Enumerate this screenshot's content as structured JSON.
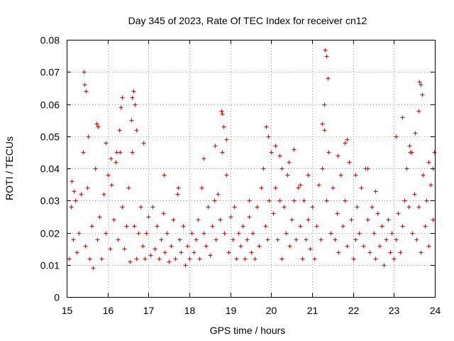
{
  "chart_data": {
    "type": "scatter",
    "title": "Day 345 of 2023, Rate Of TEC Index for receiver cn12",
    "xlabel": "GPS time / hours",
    "ylabel": "ROTI / TECUs",
    "xlim": [
      15,
      24
    ],
    "ylim": [
      0,
      0.08
    ],
    "x_ticks": [
      15,
      16,
      17,
      18,
      19,
      20,
      21,
      22,
      23,
      24
    ],
    "x_tick_labels": [
      "15",
      "16",
      "17",
      "18",
      "19",
      "20",
      "21",
      "22",
      "23",
      "24"
    ],
    "y_ticks": [
      0,
      0.01,
      0.02,
      0.03,
      0.04,
      0.05,
      0.06,
      0.07,
      0.08
    ],
    "y_tick_labels": [
      "0",
      "0.01",
      "0.02",
      "0.03",
      "0.04",
      "0.05",
      "0.06",
      "0.07",
      "0.08"
    ],
    "grid": true,
    "marker": "+",
    "series": [
      {
        "name": "ROTI",
        "color": "#ff0000",
        "x": [
          15.05,
          15.1,
          15.15,
          15.2,
          15.25,
          15.3,
          15.35,
          15.4,
          15.45,
          15.5,
          15.55,
          15.6,
          15.65,
          15.7,
          15.75,
          15.8,
          15.85,
          15.9,
          15.95,
          16.0,
          16.05,
          16.1,
          16.15,
          16.2,
          16.25,
          16.3,
          16.35,
          16.4,
          16.45,
          16.5,
          16.55,
          16.6,
          16.65,
          16.7,
          16.75,
          16.8,
          16.85,
          16.9,
          16.95,
          17.0,
          17.05,
          17.1,
          17.15,
          17.2,
          17.25,
          17.3,
          17.35,
          17.4,
          17.45,
          17.5,
          17.55,
          17.6,
          17.65,
          17.7,
          17.75,
          17.8,
          17.85,
          17.9,
          17.95,
          18.0,
          18.05,
          18.1,
          18.15,
          18.2,
          18.25,
          18.3,
          18.35,
          18.4,
          18.45,
          18.5,
          18.55,
          18.6,
          18.65,
          18.7,
          18.75,
          18.8,
          18.85,
          18.9,
          18.95,
          19.0,
          19.05,
          19.1,
          19.15,
          19.2,
          19.25,
          19.3,
          19.35,
          19.4,
          19.45,
          19.5,
          19.55,
          19.6,
          19.65,
          19.7,
          19.75,
          19.8,
          19.85,
          19.9,
          19.95,
          20.0,
          20.05,
          20.1,
          20.15,
          20.2,
          20.25,
          20.3,
          20.35,
          20.4,
          20.45,
          20.5,
          20.55,
          20.6,
          20.65,
          20.7,
          20.75,
          20.8,
          20.85,
          20.9,
          20.95,
          21.0,
          21.05,
          21.1,
          21.15,
          21.2,
          21.25,
          21.3,
          21.35,
          21.4,
          21.45,
          21.5,
          21.55,
          21.6,
          21.65,
          21.7,
          21.75,
          21.8,
          21.85,
          21.9,
          21.95,
          22.0,
          22.05,
          22.1,
          22.15,
          22.2,
          22.25,
          22.3,
          22.35,
          22.4,
          22.45,
          22.5,
          22.55,
          22.6,
          22.65,
          22.7,
          22.75,
          22.8,
          22.85,
          22.9,
          22.95,
          23.0,
          23.05,
          23.1,
          23.15,
          23.2,
          23.25,
          23.3,
          23.35,
          23.4,
          23.45,
          23.5,
          23.55,
          23.6,
          23.65,
          23.7,
          23.75,
          23.8,
          23.85,
          23.9,
          23.95,
          15.12,
          15.18,
          15.42,
          15.44,
          15.47,
          15.52,
          15.73,
          15.76,
          15.96,
          16.08,
          16.22,
          16.28,
          16.31,
          16.35,
          16.58,
          16.6,
          16.63,
          16.66,
          16.7,
          16.88,
          17.38,
          17.72,
          18.35,
          18.62,
          18.78,
          18.8,
          18.84,
          18.9,
          19.45,
          19.88,
          19.92,
          20.1,
          20.2,
          20.25,
          20.42,
          20.55,
          20.7,
          20.9,
          21.25,
          21.3,
          21.32,
          21.35,
          21.38,
          21.62,
          21.8,
          21.85,
          22.05,
          22.35,
          22.55,
          23.05,
          23.2,
          23.38,
          23.42,
          23.52,
          23.6,
          23.62,
          23.65,
          23.68,
          23.85,
          23.95,
          23.98
        ],
        "y": [
          0.012,
          0.028,
          0.018,
          0.03,
          0.014,
          0.02,
          0.032,
          0.045,
          0.016,
          0.034,
          0.012,
          0.022,
          0.009,
          0.04,
          0.018,
          0.025,
          0.012,
          0.032,
          0.02,
          0.038,
          0.015,
          0.035,
          0.024,
          0.042,
          0.018,
          0.045,
          0.028,
          0.015,
          0.022,
          0.034,
          0.011,
          0.045,
          0.022,
          0.012,
          0.02,
          0.028,
          0.016,
          0.012,
          0.02,
          0.025,
          0.013,
          0.028,
          0.015,
          0.022,
          0.012,
          0.018,
          0.026,
          0.014,
          0.02,
          0.011,
          0.016,
          0.024,
          0.012,
          0.032,
          0.018,
          0.014,
          0.022,
          0.01,
          0.016,
          0.012,
          0.02,
          0.014,
          0.018,
          0.024,
          0.012,
          0.034,
          0.02,
          0.016,
          0.028,
          0.013,
          0.022,
          0.03,
          0.018,
          0.032,
          0.024,
          0.045,
          0.02,
          0.038,
          0.014,
          0.025,
          0.018,
          0.028,
          0.012,
          0.02,
          0.016,
          0.022,
          0.012,
          0.018,
          0.025,
          0.014,
          0.02,
          0.012,
          0.028,
          0.016,
          0.034,
          0.04,
          0.022,
          0.018,
          0.03,
          0.045,
          0.026,
          0.034,
          0.018,
          0.03,
          0.012,
          0.028,
          0.02,
          0.038,
          0.016,
          0.024,
          0.03,
          0.018,
          0.034,
          0.022,
          0.012,
          0.03,
          0.018,
          0.024,
          0.015,
          0.028,
          0.012,
          0.022,
          0.035,
          0.018,
          0.04,
          0.052,
          0.03,
          0.045,
          0.02,
          0.034,
          0.018,
          0.026,
          0.014,
          0.038,
          0.022,
          0.03,
          0.016,
          0.042,
          0.024,
          0.012,
          0.018,
          0.028,
          0.02,
          0.034,
          0.016,
          0.04,
          0.024,
          0.014,
          0.028,
          0.02,
          0.012,
          0.026,
          0.016,
          0.022,
          0.01,
          0.018,
          0.024,
          0.014,
          0.02,
          0.012,
          0.018,
          0.026,
          0.014,
          0.022,
          0.03,
          0.04,
          0.028,
          0.045,
          0.02,
          0.032,
          0.018,
          0.028,
          0.014,
          0.038,
          0.022,
          0.03,
          0.016,
          0.035,
          0.024,
          0.036,
          0.033,
          0.07,
          0.066,
          0.064,
          0.05,
          0.054,
          0.053,
          0.048,
          0.043,
          0.045,
          0.052,
          0.059,
          0.062,
          0.055,
          0.062,
          0.064,
          0.06,
          0.052,
          0.048,
          0.038,
          0.034,
          0.043,
          0.047,
          0.058,
          0.057,
          0.053,
          0.049,
          0.03,
          0.053,
          0.05,
          0.047,
          0.044,
          0.04,
          0.042,
          0.046,
          0.035,
          0.038,
          0.054,
          0.06,
          0.077,
          0.075,
          0.068,
          0.044,
          0.048,
          0.049,
          0.038,
          0.04,
          0.033,
          0.05,
          0.056,
          0.047,
          0.045,
          0.051,
          0.058,
          0.067,
          0.066,
          0.063,
          0.042,
          0.04,
          0.045
        ]
      }
    ]
  }
}
